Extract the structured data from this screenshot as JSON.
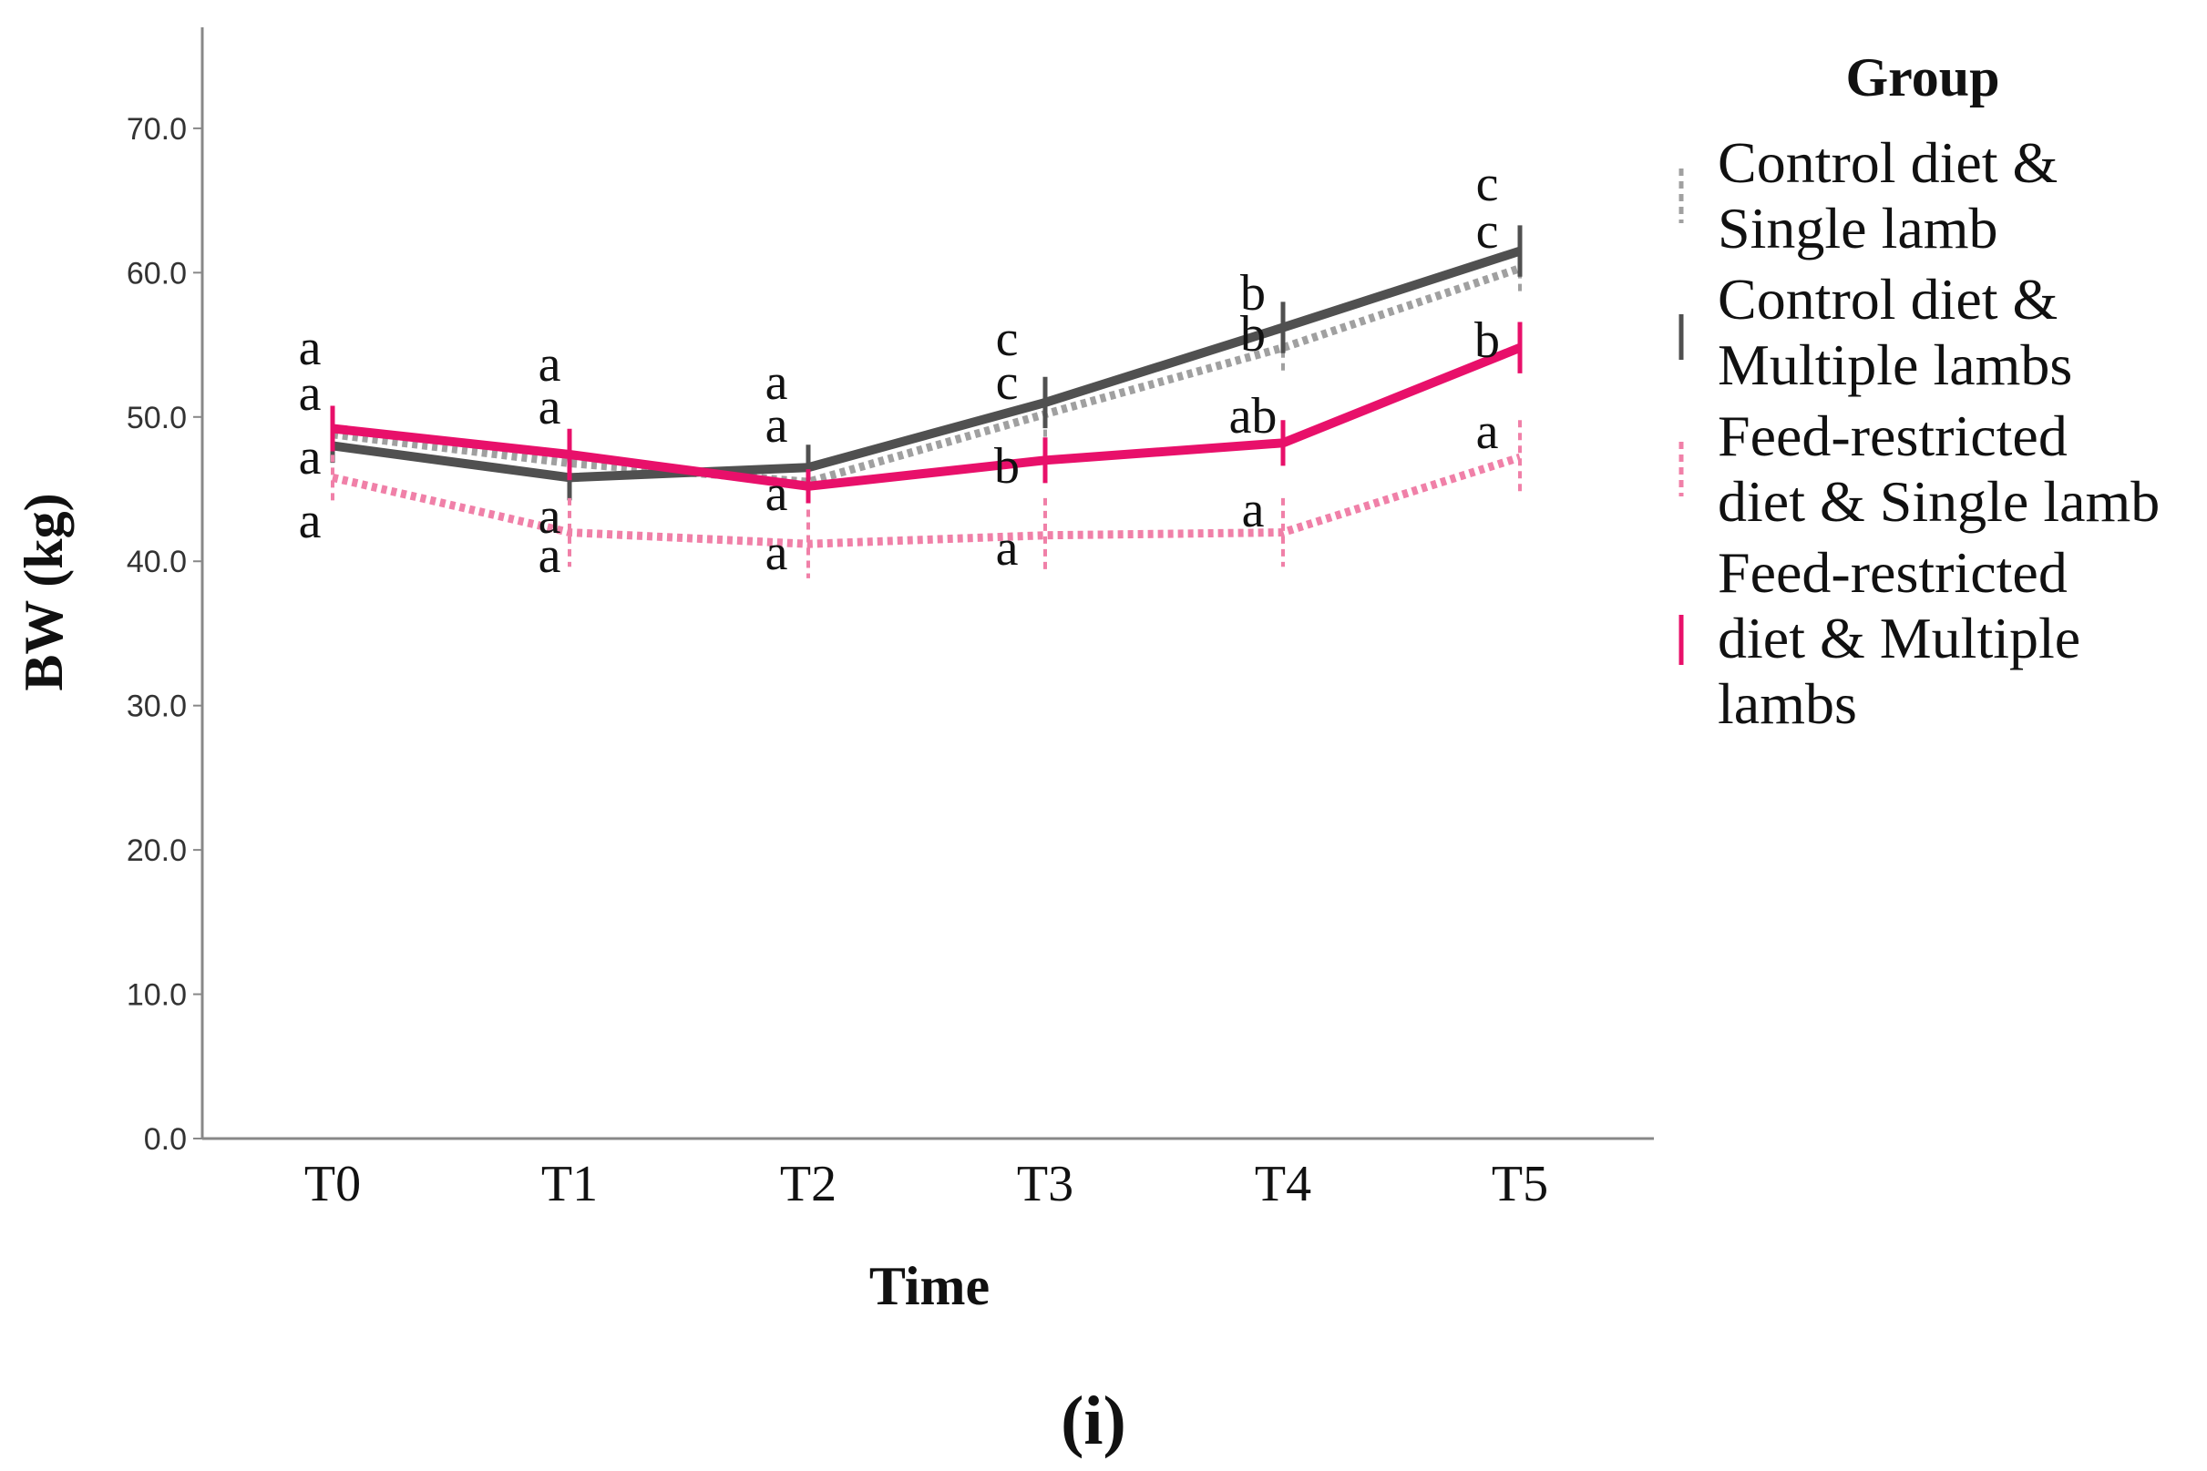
{
  "chart_data": {
    "type": "line",
    "title": "",
    "xlabel": "Time",
    "ylabel": "BW (kg)",
    "caption": "(i)",
    "categories": [
      "T0",
      "T1",
      "T2",
      "T3",
      "T4",
      "T5"
    ],
    "ylim": [
      0,
      77
    ],
    "yticks": [
      "0.0",
      "10.0",
      "20.0",
      "30.0",
      "40.0",
      "50.0",
      "60.0",
      "70.0"
    ],
    "legend_title": "Group",
    "legend_position": "right",
    "series": [
      {
        "name": "Control diet & Single lamb",
        "legend_lines": [
          "Control diet &",
          "Single lamb"
        ],
        "color": "#a0a0a0",
        "style": "dotted",
        "values": [
          48.8,
          46.8,
          45.5,
          50.2,
          54.8,
          60.3
        ],
        "error": [
          0.8,
          0.8,
          0.8,
          1.2,
          1.2,
          1.2
        ],
        "letters": [
          "a",
          "a",
          "a",
          "c",
          "b",
          "c"
        ]
      },
      {
        "name": "Control diet & Multiple lambs",
        "legend_lines": [
          "Control diet &",
          "Multiple lambs"
        ],
        "color": "#505050",
        "style": "solid",
        "values": [
          48.0,
          45.8,
          46.5,
          51.0,
          56.2,
          61.5
        ],
        "error": [
          0.8,
          1.2,
          1.2,
          1.4,
          1.4,
          1.4
        ],
        "letters": [
          "a",
          "a",
          "a",
          "c",
          "b",
          "c"
        ]
      },
      {
        "name": "Feed-restricted diet & Single lamb",
        "legend_lines": [
          "Feed-restricted",
          "diet & Single lamb"
        ],
        "color": "#f080a8",
        "style": "dotted",
        "values": [
          45.8,
          42.0,
          41.2,
          41.8,
          42.0,
          47.2
        ],
        "error": [
          1.2,
          2.0,
          2.0,
          2.2,
          2.0,
          2.2
        ],
        "letters": [
          "a",
          "a",
          "a",
          "a",
          "a",
          "a"
        ]
      },
      {
        "name": "Feed-restricted diet & Multiple lambs",
        "legend_lines": [
          "Feed-restricted",
          "diet & Multiple",
          "lambs"
        ],
        "color": "#e8106a",
        "style": "solid",
        "values": [
          49.2,
          47.4,
          45.2,
          47.0,
          48.2,
          54.8
        ],
        "error": [
          1.2,
          1.4,
          0.8,
          1.2,
          1.2,
          1.4
        ],
        "letters": [
          "a",
          "a",
          "a",
          "b",
          "ab",
          "b"
        ]
      }
    ]
  }
}
